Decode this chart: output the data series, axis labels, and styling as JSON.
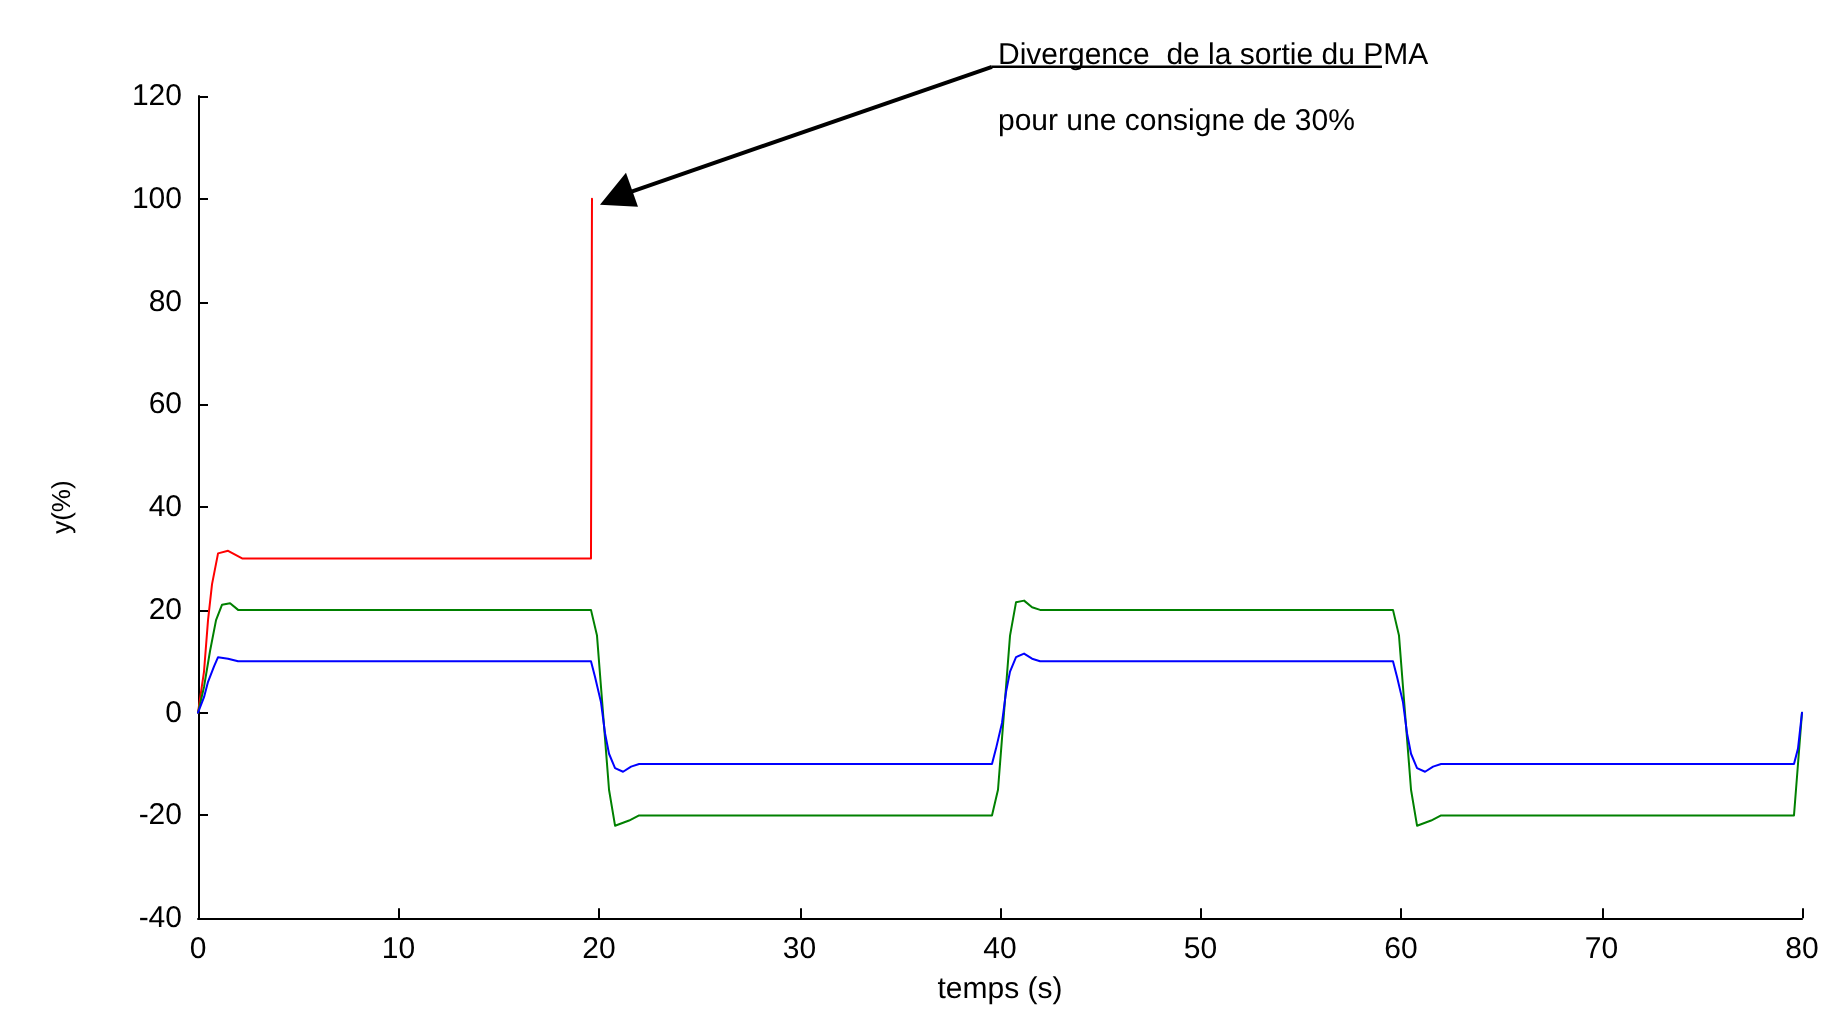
{
  "chart_data": {
    "type": "line",
    "xlabel": "temps (s)",
    "ylabel": "y(%)",
    "xlim": [
      0,
      80
    ],
    "xticks": [
      0,
      10,
      20,
      30,
      40,
      50,
      60,
      70,
      80
    ],
    "ylim": [
      -40,
      120
    ],
    "yticks": [
      -40,
      -20,
      0,
      20,
      40,
      60,
      80,
      100,
      120
    ],
    "grid": false,
    "marker": "none",
    "line_style": "solid",
    "annotations": [
      "Divergence  de la sortie du PMA\npour une consigne de 30%"
    ],
    "series": [
      {
        "color": "#ff0000",
        "x": [
          0,
          0.3,
          0.5,
          0.7,
          1.0,
          1.5,
          2.2,
          19.6,
          19.65
        ],
        "values": [
          0,
          8,
          18,
          25,
          31,
          31.5,
          30,
          30,
          100
        ]
      },
      {
        "color": "#008000",
        "x": [
          0,
          0.3,
          0.6,
          0.9,
          1.2,
          1.6,
          2,
          19.6,
          19.9,
          20.1,
          20.3,
          20.5,
          20.8,
          21.5,
          22,
          39.6,
          39.9,
          40.1,
          40.3,
          40.5,
          40.8,
          41.2,
          41.6,
          42,
          59.6,
          59.9,
          60.1,
          60.3,
          60.5,
          60.8,
          61.5,
          62,
          79.6,
          79.8,
          80
        ],
        "values": [
          0,
          5,
          12,
          18,
          21,
          21.3,
          20,
          20,
          15,
          5,
          -5,
          -15,
          -22,
          -21,
          -20,
          -20,
          -15,
          -5,
          5,
          15,
          21.5,
          21.8,
          20.5,
          20,
          20,
          15,
          5,
          -5,
          -15,
          -22,
          -21,
          -20,
          -20,
          -10,
          0
        ]
      },
      {
        "color": "#0000ff",
        "x": [
          0,
          0.3,
          0.5,
          0.8,
          1.0,
          1.5,
          2,
          19.6,
          19.8,
          20.1,
          20.3,
          20.5,
          20.8,
          21.2,
          21.6,
          22,
          39.6,
          39.8,
          40.1,
          40.3,
          40.5,
          40.8,
          41.2,
          41.6,
          42,
          59.6,
          59.8,
          60.1,
          60.3,
          60.5,
          60.8,
          61.2,
          61.6,
          62,
          79.6,
          79.8,
          80
        ],
        "values": [
          0,
          3,
          6,
          9,
          10.8,
          10.5,
          10,
          10,
          7,
          2,
          -4,
          -8,
          -10.8,
          -11.5,
          -10.5,
          -10,
          -10,
          -7,
          -2,
          4,
          8,
          10.8,
          11.5,
          10.5,
          10,
          10,
          7,
          2,
          -4,
          -8,
          -10.8,
          -11.5,
          -10.5,
          -10,
          -10,
          -7,
          0
        ]
      }
    ]
  }
}
